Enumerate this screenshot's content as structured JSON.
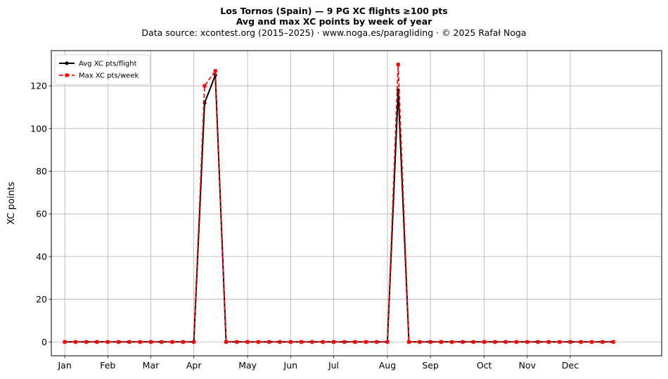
{
  "header": {
    "title_line1": "Los Tornos (Spain)  —  9 PG XC flights ≥100 pts",
    "title_line2": "Avg and max XC points by week of year",
    "subtitle": "Data source: xcontest.org (2015–2025)  ·  www.noga.es/paragliding  ·  © 2025 Rafał Noga"
  },
  "chart_data": {
    "type": "line",
    "title": "Los Tornos (Spain)  —  9 PG XC flights ≥100 pts\nAvg and max XC points by week of year",
    "subtitle": "Data source: xcontest.org (2015–2025)  ·  www.noga.es/paragliding  ·  © 2025 Rafał Noga",
    "xlabel": "",
    "ylabel": "XC points",
    "x": [
      1,
      2,
      3,
      4,
      5,
      6,
      7,
      8,
      9,
      10,
      11,
      12,
      13,
      14,
      15,
      16,
      17,
      18,
      19,
      20,
      21,
      22,
      23,
      24,
      25,
      26,
      27,
      28,
      29,
      30,
      31,
      32,
      33,
      34,
      35,
      36,
      37,
      38,
      39,
      40,
      41,
      42,
      43,
      44,
      45,
      46,
      47,
      48,
      49,
      50,
      51,
      52
    ],
    "xlim": [
      -0.25,
      56.5
    ],
    "ylim": [
      -6.5,
      136.5
    ],
    "x_ticks": [
      {
        "value": 1,
        "label": "Jan"
      },
      {
        "value": 5,
        "label": "Feb"
      },
      {
        "value": 9,
        "label": "Mar"
      },
      {
        "value": 13,
        "label": "Apr"
      },
      {
        "value": 18,
        "label": "May"
      },
      {
        "value": 22,
        "label": "Jun"
      },
      {
        "value": 26,
        "label": "Jul"
      },
      {
        "value": 31,
        "label": "Aug"
      },
      {
        "value": 35,
        "label": "Sep"
      },
      {
        "value": 40,
        "label": "Oct"
      },
      {
        "value": 44,
        "label": "Nov"
      },
      {
        "value": 48,
        "label": "Dec"
      }
    ],
    "y_ticks": [
      0,
      20,
      40,
      60,
      80,
      100,
      120
    ],
    "grid": true,
    "legend_position": "upper-left",
    "series": [
      {
        "name": "Avg XC pts/flight",
        "color": "#000000",
        "linestyle": "solid",
        "marker": "circle",
        "values": [
          0,
          0,
          0,
          0,
          0,
          0,
          0,
          0,
          0,
          0,
          0,
          0,
          0,
          112,
          125,
          0,
          0,
          0,
          0,
          0,
          0,
          0,
          0,
          0,
          0,
          0,
          0,
          0,
          0,
          0,
          0,
          118,
          0,
          0,
          0,
          0,
          0,
          0,
          0,
          0,
          0,
          0,
          0,
          0,
          0,
          0,
          0,
          0,
          0,
          0,
          0,
          0
        ]
      },
      {
        "name": "Max XC pts/week",
        "color": "#ff0000",
        "linestyle": "dashed",
        "marker": "square",
        "values": [
          0,
          0,
          0,
          0,
          0,
          0,
          0,
          0,
          0,
          0,
          0,
          0,
          0,
          120,
          127,
          0,
          0,
          0,
          0,
          0,
          0,
          0,
          0,
          0,
          0,
          0,
          0,
          0,
          0,
          0,
          0,
          130,
          0,
          0,
          0,
          0,
          0,
          0,
          0,
          0,
          0,
          0,
          0,
          0,
          0,
          0,
          0,
          0,
          0,
          0,
          0,
          0
        ]
      }
    ]
  }
}
